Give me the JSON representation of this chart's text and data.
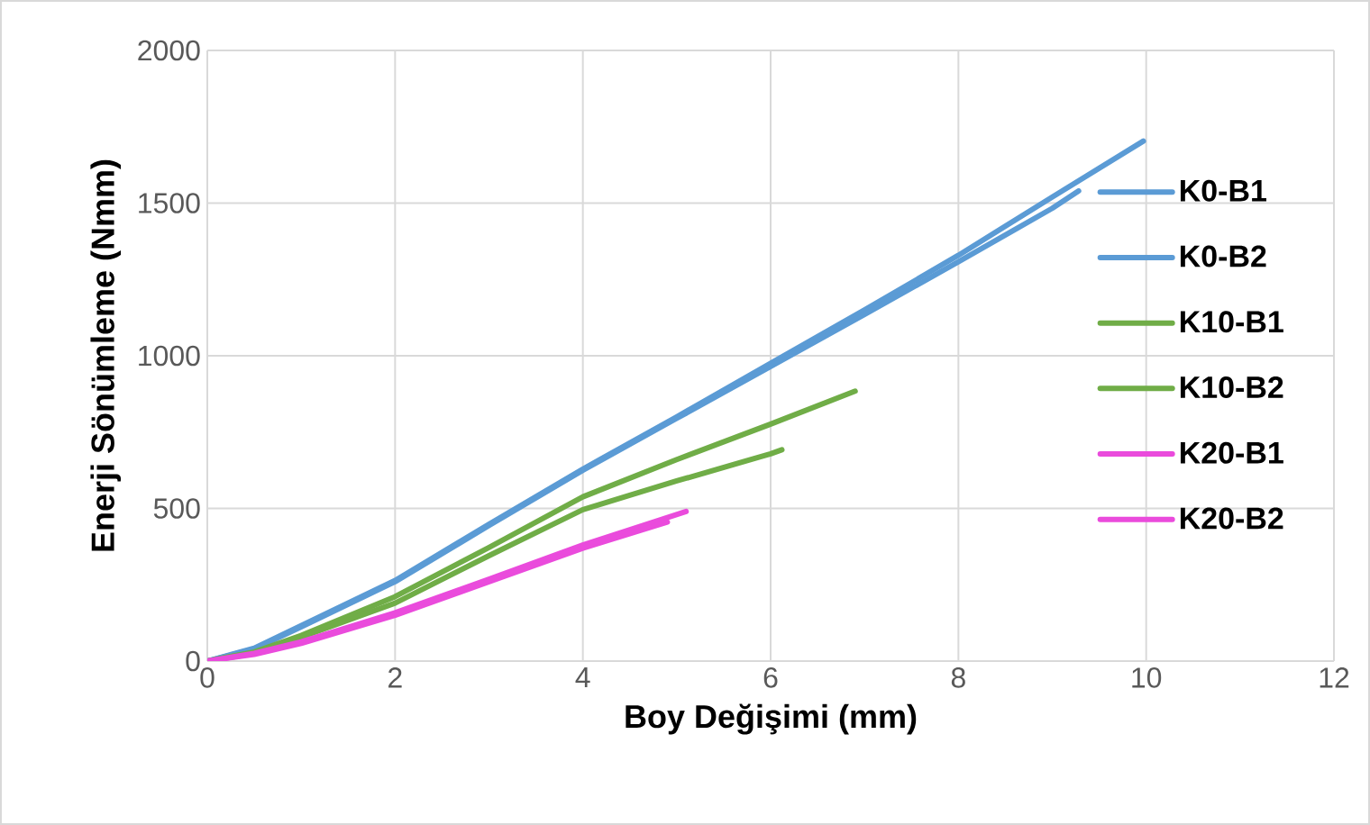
{
  "chart_data": {
    "type": "line",
    "xlabel": "Boy Değişimi (mm)",
    "ylabel": "Enerji Sönümleme (Nmm)",
    "xlim": [
      0,
      12
    ],
    "xticks": [
      0,
      2,
      4,
      6,
      8,
      10,
      12
    ],
    "ylim": [
      0,
      2000
    ],
    "yticks": [
      0,
      500,
      1000,
      1500,
      2000
    ],
    "grid": true,
    "legend": "right",
    "series": [
      {
        "name": "K0-B1",
        "color": "#5b9bd5",
        "x": [
          0,
          0.5,
          1,
          2,
          3,
          4,
          5,
          6,
          7,
          8,
          9,
          9.97
        ],
        "values": [
          0,
          42,
          116,
          264,
          448,
          629,
          800,
          975,
          1150,
          1329,
          1520,
          1703
        ]
      },
      {
        "name": "K0-B2",
        "color": "#5b9bd5",
        "x": [
          0,
          0.5,
          1,
          2,
          3,
          4,
          5,
          6,
          7,
          8,
          9,
          9.28
        ],
        "values": [
          0,
          40,
          112,
          260,
          444,
          625,
          795,
          965,
          1135,
          1308,
          1483,
          1540
        ]
      },
      {
        "name": "K10-B1",
        "color": "#70ad47",
        "x": [
          0,
          0.5,
          1,
          2,
          3,
          4,
          5,
          6,
          6.9
        ],
        "values": [
          0,
          30,
          84,
          211,
          372,
          538,
          660,
          776,
          884
        ]
      },
      {
        "name": "K10-B2",
        "color": "#70ad47",
        "x": [
          0,
          0.5,
          1,
          2,
          3,
          4,
          5,
          6,
          6.12
        ],
        "values": [
          0,
          28,
          78,
          190,
          345,
          496,
          590,
          679,
          692
        ]
      },
      {
        "name": "K20-B1",
        "color": "#ea4bdc",
        "x": [
          0,
          0.5,
          1,
          2,
          3,
          4,
          5.1
        ],
        "values": [
          0,
          25,
          63,
          158,
          268,
          380,
          490
        ]
      },
      {
        "name": "K20-B2",
        "color": "#ea4bdc",
        "x": [
          0,
          0.5,
          1,
          2,
          3,
          4,
          4.9
        ],
        "values": [
          0,
          22,
          58,
          150,
          260,
          370,
          455
        ]
      }
    ]
  }
}
